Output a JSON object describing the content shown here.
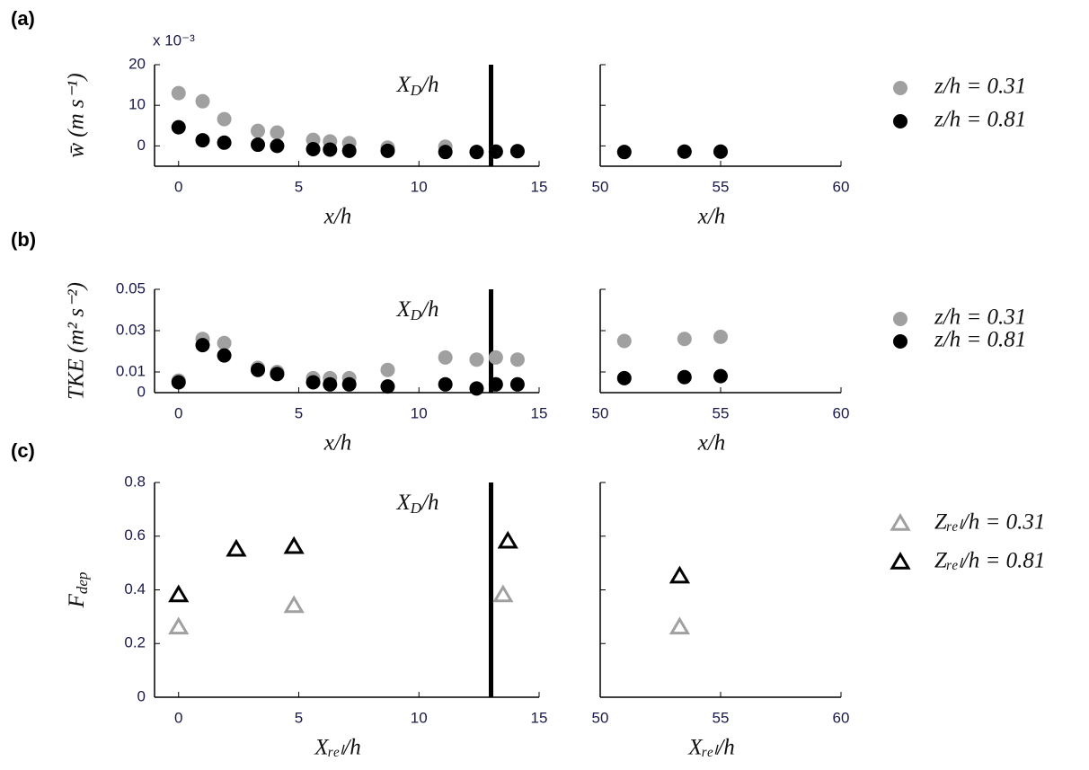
{
  "chart_data": [
    {
      "type": "scatter",
      "panel_label": "(a)",
      "ylabel": "w̄ (m s⁻¹)",
      "annotation": "x 10⁻³",
      "xd_label": {
        "base": "X",
        "sub": "D",
        "rest": "/h"
      },
      "vline": 13,
      "xlabel": "x/h",
      "xlim": [
        -1,
        15
      ],
      "xticks": [
        0,
        5,
        10,
        15
      ],
      "ylim": [
        -5,
        20
      ],
      "yticks": [
        0,
        10,
        20
      ],
      "marker": "circle",
      "x": [
        0,
        1,
        1.9,
        3.3,
        4.1,
        5.6,
        6.3,
        7.1,
        8.7,
        11.1,
        12.4,
        13.2,
        14.1
      ],
      "series": [
        {
          "name": "z/h = 0.31",
          "color": "#a0a0a0",
          "values": [
            13,
            11,
            6.6,
            3.7,
            3.3,
            1.5,
            1.1,
            0.7,
            -0.4,
            -0.2,
            -1.5,
            -1.4,
            -1.3
          ]
        },
        {
          "name": "z/h = 0.81",
          "color": "#000000",
          "values": [
            4.6,
            1.4,
            0.8,
            0.3,
            0,
            -0.8,
            -0.9,
            -1.2,
            -1.2,
            -1.5,
            -1.5,
            -1.4,
            -1.3
          ]
        }
      ]
    },
    {
      "type": "scatter",
      "xlabel": "x/h",
      "xlim": [
        50,
        60
      ],
      "xticks": [
        50,
        55,
        60
      ],
      "ylim": [
        -5,
        20
      ],
      "marker": "circle",
      "x": [
        51,
        53.5,
        55
      ],
      "series": [
        {
          "color": "#a0a0a0",
          "values": [
            -1.5,
            -1.4,
            -1.4
          ]
        },
        {
          "color": "#000000",
          "values": [
            -1.5,
            -1.4,
            -1.4
          ]
        }
      ]
    },
    {
      "type": "scatter",
      "panel_label": "(b)",
      "ylabel": "TKE (m² s⁻²)",
      "xd_label": {
        "base": "X",
        "sub": "D",
        "rest": "/h"
      },
      "vline": 13,
      "xlabel": "x/h",
      "xlim": [
        -1,
        15
      ],
      "xticks": [
        0,
        5,
        10,
        15
      ],
      "ylim": [
        0,
        0.05
      ],
      "yticks": [
        0,
        0.01,
        0.03,
        0.05
      ],
      "marker": "circle",
      "x": [
        0,
        1,
        1.9,
        3.3,
        4.1,
        5.6,
        6.3,
        7.1,
        8.7,
        11.1,
        12.4,
        13.2,
        14.1
      ],
      "series": [
        {
          "name": "z/h = 0.31",
          "color": "#a0a0a0",
          "values": [
            0.0058,
            0.026,
            0.024,
            0.012,
            0.01,
            0.007,
            0.007,
            0.007,
            0.011,
            0.017,
            0.016,
            0.017,
            0.016
          ]
        },
        {
          "name": "z/h = 0.81",
          "color": "#000000",
          "values": [
            0.005,
            0.023,
            0.018,
            0.011,
            0.009,
            0.005,
            0.004,
            0.004,
            0.003,
            0.004,
            0.002,
            0.004,
            0.004
          ]
        }
      ]
    },
    {
      "type": "scatter",
      "xlabel": "x/h",
      "xlim": [
        50,
        60
      ],
      "xticks": [
        50,
        55,
        60
      ],
      "ylim": [
        0,
        0.05
      ],
      "marker": "circle",
      "x": [
        51,
        53.5,
        55
      ],
      "series": [
        {
          "color": "#a0a0a0",
          "values": [
            0.025,
            0.026,
            0.027
          ]
        },
        {
          "color": "#000000",
          "values": [
            0.007,
            0.0075,
            0.008
          ]
        }
      ]
    },
    {
      "type": "scatter",
      "panel_label": "(c)",
      "ylabel": {
        "base": "F",
        "sub": "dep"
      },
      "xd_label": {
        "base": "X",
        "sub": "D",
        "rest": "/h"
      },
      "vline": 13,
      "xlabel": "Xᵣₑₗ/h",
      "xlim": [
        -1,
        15
      ],
      "xticks": [
        0,
        5,
        10,
        15
      ],
      "ylim": [
        0,
        0.8
      ],
      "yticks": [
        0,
        0.2,
        0.4,
        0.6,
        0.8
      ],
      "marker": "triangle",
      "series": [
        {
          "name": "Zᵣₑₗ/h = 0.31",
          "color": "#a0a0a0",
          "x": [
            0,
            4.8,
            13.5
          ],
          "values": [
            0.26,
            0.34,
            0.38
          ]
        },
        {
          "name": "Zᵣₑₗ/h = 0.81",
          "color": "#000000",
          "x": [
            0,
            2.4,
            4.8,
            13.7
          ],
          "values": [
            0.38,
            0.55,
            0.56,
            0.58
          ]
        }
      ]
    },
    {
      "type": "scatter",
      "xlabel": "Xᵣₑₗ/h",
      "xlim": [
        50,
        60
      ],
      "xticks": [
        50,
        55,
        60
      ],
      "ylim": [
        0,
        0.8
      ],
      "marker": "triangle",
      "series": [
        {
          "color": "#a0a0a0",
          "x": [
            53.3
          ],
          "values": [
            0.26
          ]
        },
        {
          "color": "#000000",
          "x": [
            53.3
          ],
          "values": [
            0.45
          ]
        }
      ]
    }
  ]
}
